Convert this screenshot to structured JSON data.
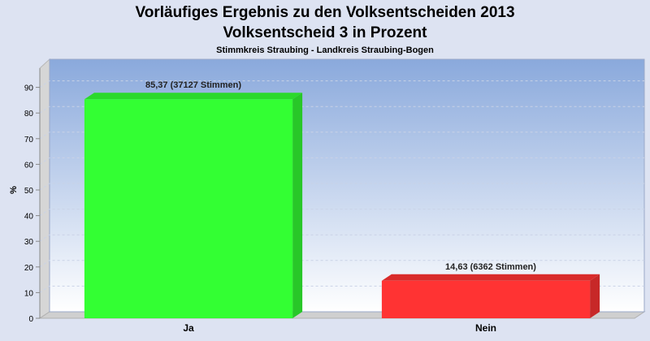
{
  "chart_data": {
    "type": "bar",
    "title": "Vorläufiges Ergebnis zu den Volksentscheiden 2013",
    "subtitle": "Volksentscheid 3 in Prozent",
    "subsubtitle": "Stimmkreis Straubing - Landkreis Straubing-Bogen",
    "xlabel": "",
    "ylabel": "%",
    "ylim": [
      0,
      100
    ],
    "yticks": [
      0,
      10,
      20,
      30,
      40,
      50,
      60,
      70,
      80,
      90
    ],
    "grid": true,
    "categories": [
      "Ja",
      "Nein"
    ],
    "values": [
      85.37,
      14.63
    ],
    "data_labels": [
      "85,37 (37127 Stimmen)",
      "14,63 (6362 Stimmen)"
    ],
    "colors": [
      "#33ff33",
      "#ff3333"
    ]
  }
}
